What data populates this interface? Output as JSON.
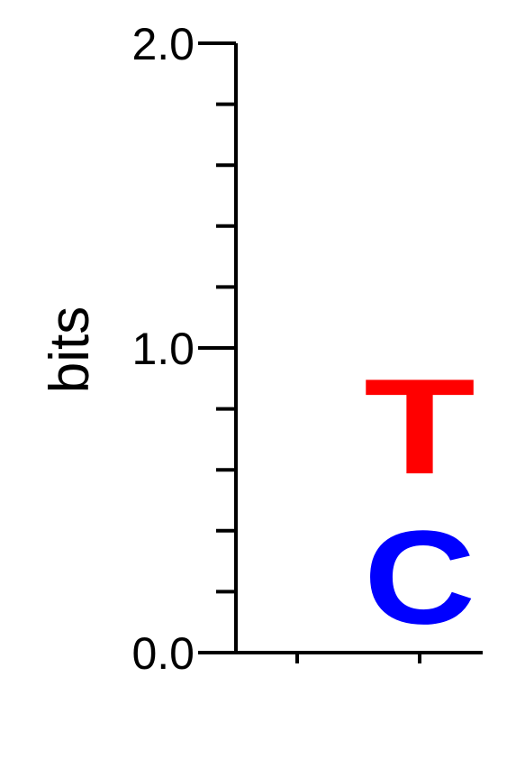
{
  "chart_data": {
    "type": "sequence-logo",
    "ylabel": "bits",
    "ylim": [
      0,
      2
    ],
    "y_ticks": [
      {
        "value": 0.0,
        "label": "0.0"
      },
      {
        "value": 1.0,
        "label": "1.0"
      },
      {
        "value": 2.0,
        "label": "2.0"
      }
    ],
    "y_minor_step": 0.2,
    "positions": [
      {
        "index": 1,
        "letters": []
      },
      {
        "index": 2,
        "letters": [
          {
            "letter": "C",
            "bits": 0.49,
            "color": "#0000ff"
          },
          {
            "letter": "T",
            "bits": 0.5,
            "color": "#ff0000"
          }
        ]
      }
    ]
  }
}
